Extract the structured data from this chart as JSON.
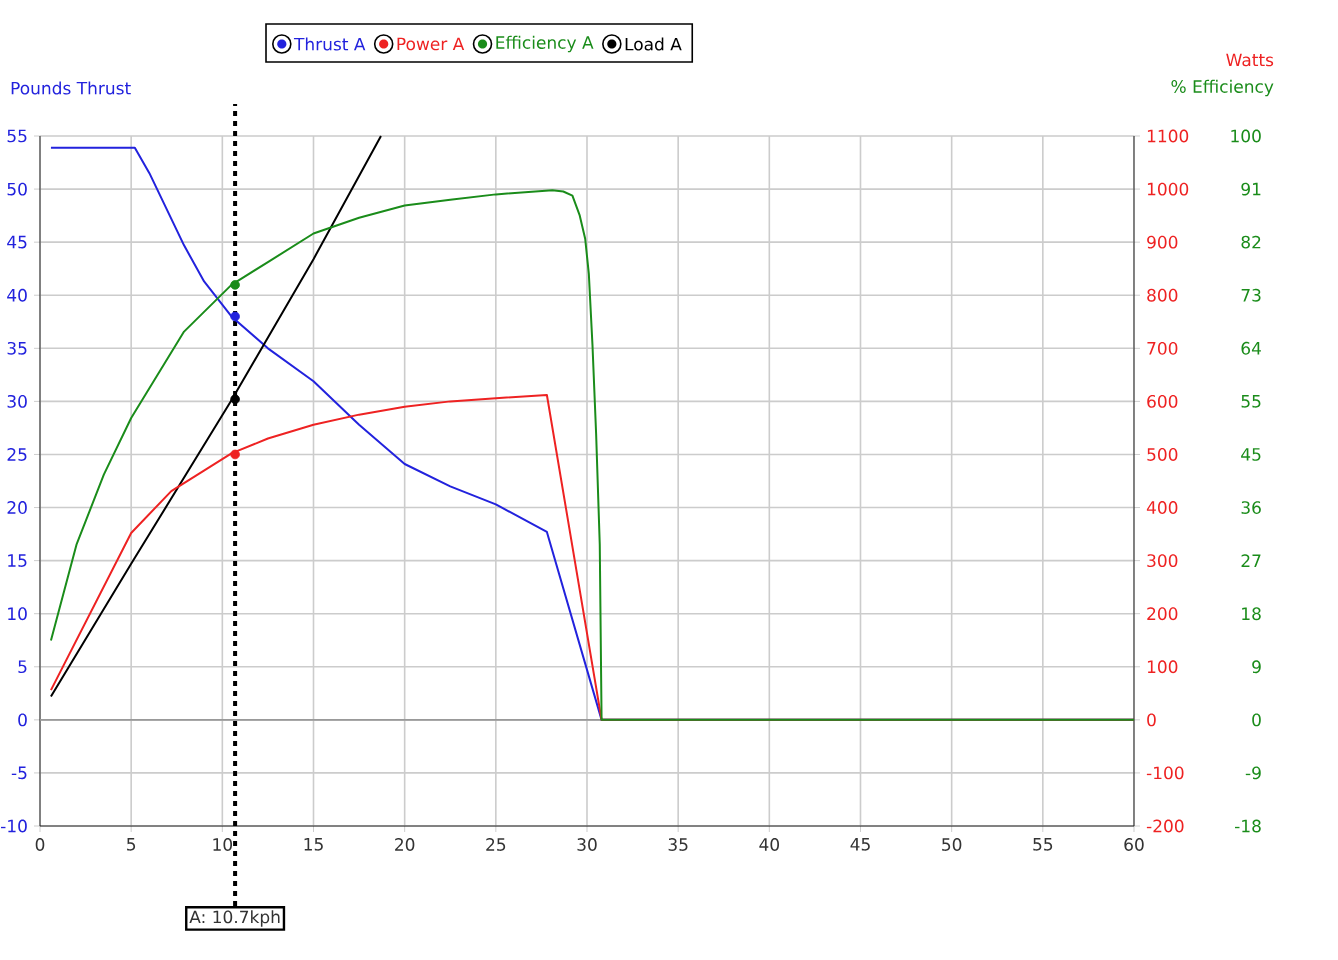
{
  "chart_data": {
    "type": "line",
    "xlabel": null,
    "ylabel": "Pounds Thrust",
    "y2label": "Watts",
    "y3label": "% Efficiency",
    "xlim": [
      0,
      60
    ],
    "xticks": [
      0,
      5,
      10,
      15,
      20,
      25,
      30,
      35,
      40,
      45,
      50,
      55,
      60
    ],
    "ylim": [
      -10,
      55
    ],
    "yticks": [
      -10,
      -5,
      0,
      5,
      10,
      15,
      20,
      25,
      30,
      35,
      40,
      45,
      50,
      55
    ],
    "y2lim": [
      -200,
      1100
    ],
    "y2ticks": [
      -200,
      -100,
      0,
      100,
      200,
      300,
      400,
      500,
      600,
      700,
      800,
      900,
      1000,
      1100
    ],
    "y3lim": [
      -18.18,
      100
    ],
    "y3ticks": [
      {
        "value": -18.18,
        "label": "-18"
      },
      {
        "value": -9.09,
        "label": "-9"
      },
      0,
      {
        "value": 9.09,
        "label": "9"
      },
      {
        "value": 18.18,
        "label": "18"
      },
      {
        "value": 27.27,
        "label": "27"
      },
      {
        "value": 36.36,
        "label": "36"
      },
      {
        "value": 45.45,
        "label": "45"
      },
      {
        "value": 54.55,
        "label": "55"
      },
      {
        "value": 63.64,
        "label": "64"
      },
      {
        "value": 72.73,
        "label": "73"
      },
      {
        "value": 81.82,
        "label": "82"
      },
      {
        "value": 90.91,
        "label": "91"
      },
      100
    ],
    "grid": true,
    "legend": "top",
    "marker": "none",
    "line_style": "solid",
    "series": [
      {
        "name": "Thrust A",
        "color": "#2222dd",
        "axis": "y",
        "x": [
          0.6,
          5.2,
          6,
          7.9,
          9,
          10.5,
          12.5,
          15,
          17.5,
          20,
          22.5,
          25,
          27.8,
          30.8,
          60
        ],
        "values": [
          53.9,
          53.9,
          51.5,
          44.7,
          41.3,
          38,
          35,
          31.9,
          27.8,
          24.1,
          22,
          20.3,
          17.7,
          0,
          0
        ]
      },
      {
        "name": "Power A",
        "color": "#ee2222",
        "axis": "y2",
        "x": [
          0.6,
          5,
          7.2,
          10.5,
          12.5,
          15,
          17.5,
          20,
          22.5,
          25,
          27.8,
          30.8,
          60
        ],
        "values": [
          56,
          352,
          431,
          502,
          530,
          556,
          575,
          590,
          600,
          606,
          612,
          0,
          0
        ]
      },
      {
        "name": "Efficiency A",
        "color": "#1a8c1a",
        "axis": "y3",
        "x": [
          0.6,
          2,
          3.5,
          5,
          7.9,
          10.5,
          12.5,
          15,
          17.5,
          20,
          22.5,
          25,
          28.1,
          28.7,
          29.2,
          29.6,
          29.9,
          30.1,
          30.3,
          30.5,
          30.7,
          30.8,
          60
        ],
        "values": [
          13.6,
          30,
          42,
          51.7,
          66.5,
          74.5,
          78.4,
          83.3,
          86,
          88.1,
          89.1,
          90,
          90.7,
          90.5,
          89.8,
          86.4,
          82.4,
          76.4,
          64.2,
          49,
          30,
          0,
          0
        ]
      },
      {
        "name": "Load A",
        "color": "#000000",
        "axis": "y",
        "x": [
          0.6,
          5,
          10.5,
          15,
          18.7
        ],
        "values": [
          2.2,
          14.7,
          30.1,
          43.4,
          55
        ]
      },
      {
        "type": "scatter",
        "marker": "circle",
        "color": "#2222dd",
        "axis": "y",
        "x": [
          10.7
        ],
        "values": [
          38
        ]
      },
      {
        "type": "scatter",
        "marker": "circle",
        "color": "#ee2222",
        "axis": "y2",
        "x": [
          10.7
        ],
        "values": [
          500
        ]
      },
      {
        "type": "scatter",
        "marker": "circle",
        "color": "#1a8c1a",
        "axis": "y3",
        "x": [
          10.7
        ],
        "values": [
          74.5
        ]
      },
      {
        "type": "scatter",
        "marker": "circle",
        "color": "#000000",
        "axis": "y",
        "x": [
          10.7
        ],
        "values": [
          30.2
        ]
      }
    ],
    "ref_lines": [
      {
        "axis": "y",
        "value": 0,
        "color": "#999999",
        "line_style": "solid"
      },
      {
        "axis": "x",
        "value": 10.7,
        "label": "A: 10.7kph",
        "color": "#000000",
        "line_style": "dotted"
      }
    ]
  }
}
